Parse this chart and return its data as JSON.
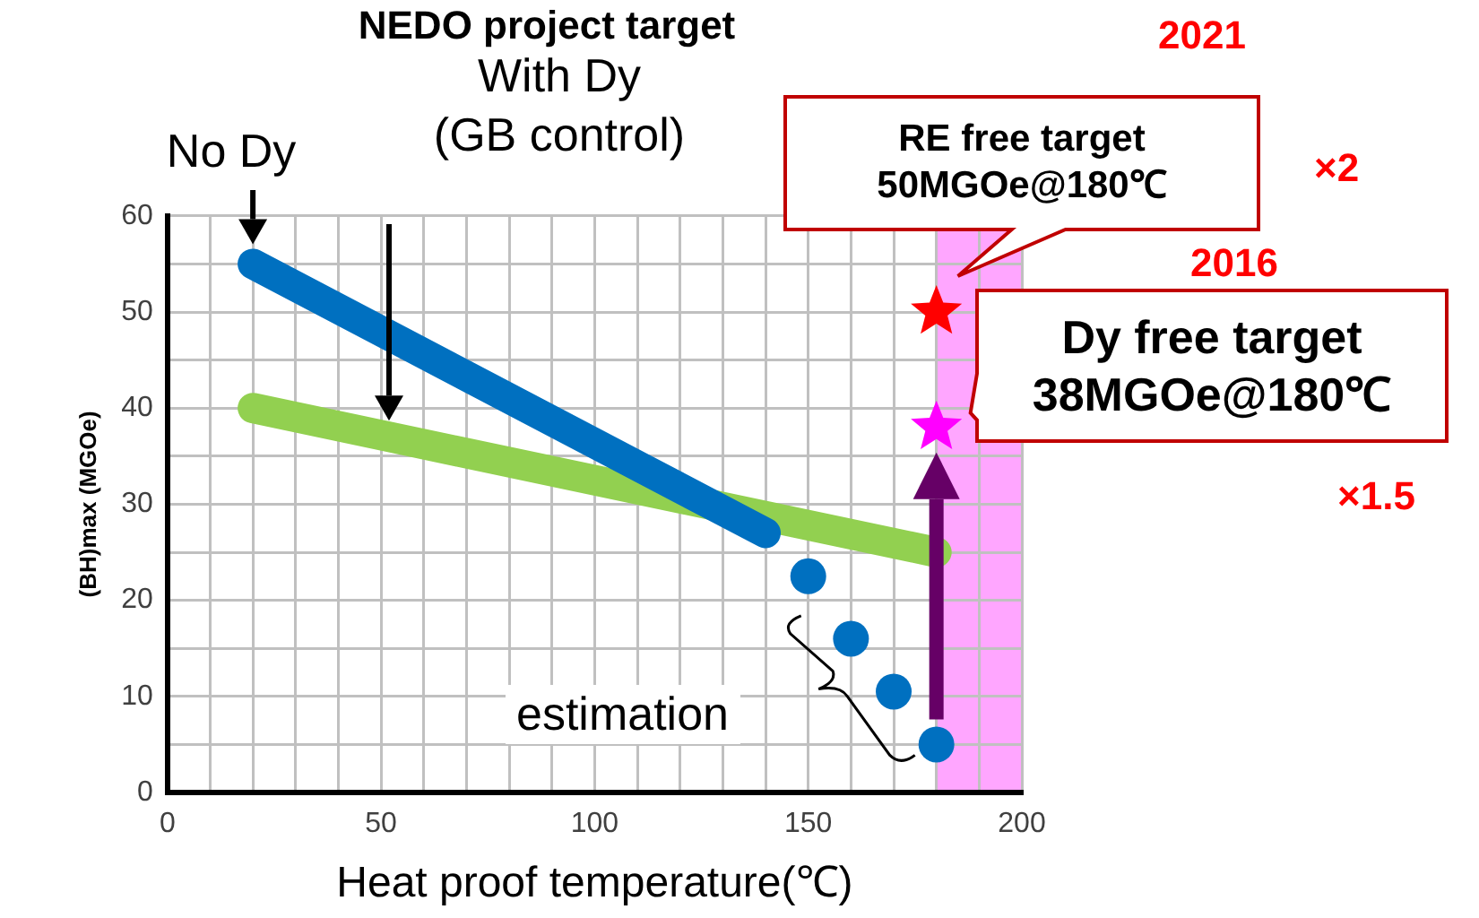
{
  "chart_data": {
    "type": "line",
    "title": "NEDO project target",
    "xlabel": "Heat proof temperature(℃)",
    "ylabel": "(BH)max (MGOe)",
    "xlim": [
      0,
      200
    ],
    "ylim": [
      0,
      60
    ],
    "xticks": [
      0,
      {
        "value": 10,
        "label": null
      },
      {
        "value": 20,
        "label": null
      },
      {
        "value": 30,
        "label": null
      },
      {
        "value": 40,
        "label": null
      },
      50,
      {
        "value": 60,
        "label": null
      },
      {
        "value": 70,
        "label": null
      },
      {
        "value": 80,
        "label": null
      },
      {
        "value": 90,
        "label": null
      },
      100,
      {
        "value": 110,
        "label": null
      },
      {
        "value": 120,
        "label": null
      },
      {
        "value": 130,
        "label": null
      },
      {
        "value": 140,
        "label": null
      },
      150,
      {
        "value": 160,
        "label": null
      },
      {
        "value": 170,
        "label": null
      },
      {
        "value": 180,
        "label": null
      },
      {
        "value": 190,
        "label": null
      },
      200
    ],
    "yticks": [
      0,
      {
        "value": 5,
        "label": null
      },
      10,
      {
        "value": 15,
        "label": null
      },
      20,
      {
        "value": 25,
        "label": null
      },
      30,
      {
        "value": 35,
        "label": null
      },
      40,
      {
        "value": 45,
        "label": null
      },
      50,
      {
        "value": 55,
        "label": null
      },
      60
    ],
    "grid": true,
    "series": [
      {
        "marker": "none",
        "color": "#0070c0",
        "x": [
          20,
          140
        ],
        "values": [
          55,
          27
        ]
      },
      {
        "marker": "none",
        "color": "#92d050",
        "x": [
          20,
          180
        ],
        "values": [
          40,
          25
        ]
      },
      {
        "type": "scatter",
        "marker": "circle",
        "color": "#0070c0",
        "x": [
          150,
          160,
          170,
          180
        ],
        "values": [
          22.5,
          16,
          10.5,
          5
        ]
      },
      {
        "type": "scatter",
        "marker": "star",
        "color": "#ff0000",
        "x": [
          180
        ],
        "values": [
          50
        ]
      },
      {
        "type": "scatter",
        "marker": "star",
        "color": "#ff00ff",
        "x": [
          180
        ],
        "values": [
          38
        ]
      }
    ],
    "bands": [
      {
        "axis": "x",
        "from": 180,
        "to": 200,
        "color": "#ffa6ff"
      }
    ],
    "annotations": [
      "No Dy",
      "With Dy\n(GB control)",
      "estimation",
      "RE free target\n50MGOe@180℃",
      "Dy free target\n38MGOe@180℃",
      "2021",
      "×2",
      "2016",
      "×1.5"
    ]
  }
}
